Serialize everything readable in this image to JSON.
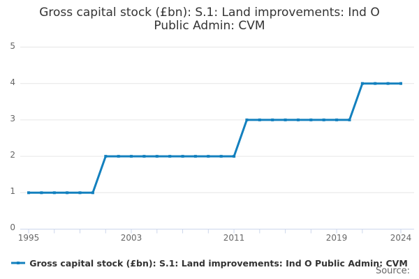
{
  "title_line1": "Gross capital stock (£bn): S.1: Land improvements: Ind O",
  "title_line2": "Public Admin: CVM",
  "legend": {
    "label": "Gross capital stock (£bn): S.1: Land improvements: Ind O Public Admin: CVM"
  },
  "source_label": "Source:",
  "colors": {
    "line": "#1380be",
    "grid": "#e6e6e6",
    "axis": "#ccd6eb",
    "tick_label": "#666666",
    "title_text": "#333333"
  },
  "chart_data": {
    "type": "line",
    "title": "Gross capital stock (£bn): S.1: Land improvements: Ind O Public Admin: CVM",
    "series_name": "Gross capital stock (£bn): S.1: Land improvements: Ind O Public Admin: CVM",
    "x": [
      1995,
      1996,
      1997,
      1998,
      1999,
      2000,
      2001,
      2002,
      2003,
      2004,
      2005,
      2006,
      2007,
      2008,
      2009,
      2010,
      2011,
      2012,
      2013,
      2014,
      2015,
      2016,
      2017,
      2018,
      2019,
      2020,
      2021,
      2022,
      2023,
      2024
    ],
    "values": [
      1,
      1,
      1,
      1,
      1,
      1,
      2,
      2,
      2,
      2,
      2,
      2,
      2,
      2,
      2,
      2,
      2,
      3,
      3,
      3,
      3,
      3,
      3,
      3,
      3,
      3,
      4,
      4,
      4,
      4
    ],
    "xlabel": "",
    "ylabel": "",
    "ylim": [
      0,
      5
    ],
    "xlim": [
      1994.4,
      2025
    ],
    "y_ticks": [
      0,
      1,
      2,
      3,
      4,
      5
    ],
    "x_tick_years": [
      1995,
      1997,
      1999,
      2001,
      2003,
      2005,
      2007,
      2009,
      2011,
      2013,
      2015,
      2017,
      2019,
      2021,
      2024
    ],
    "x_label_years": [
      1995,
      2003,
      2011,
      2019,
      2024
    ],
    "grid": "horizontal-only",
    "legend_position": "bottom",
    "marker": "square"
  }
}
